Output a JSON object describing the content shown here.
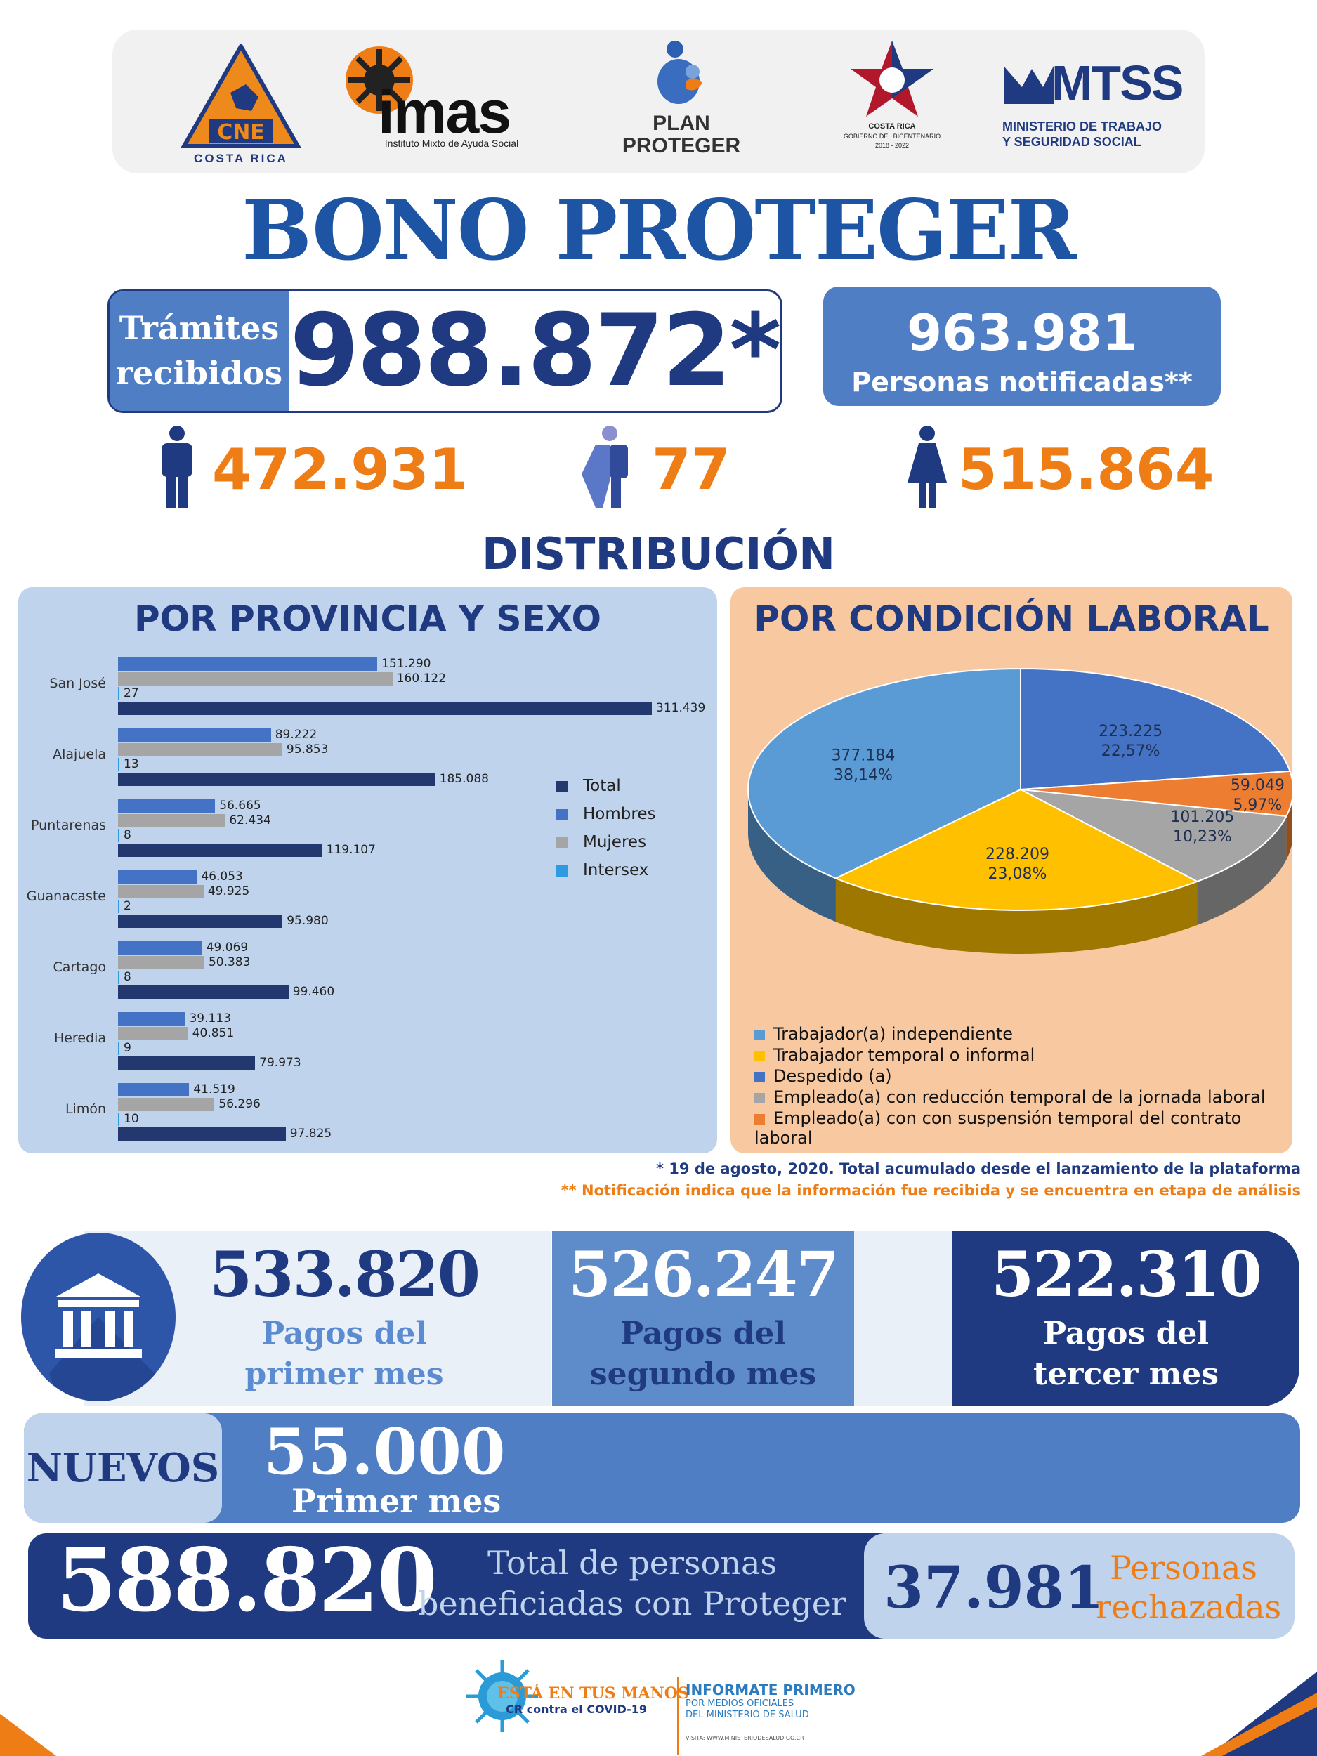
{
  "logos": {
    "cne": {
      "text": "CNE",
      "sub": "COSTA RICA"
    },
    "imas": {
      "text": "imas",
      "sub": "Instituto Mixto de Ayuda Social"
    },
    "plan": {
      "line1": "PLAN",
      "line2": "PROTEGER"
    },
    "gobierno": {
      "line1": "COSTA RICA",
      "line2": "GOBIERNO DEL BICENTENARIO",
      "line3": "2018 - 2022"
    },
    "mtss": {
      "text": "MTSS",
      "line1": "MINISTERIO DE TRABAJO",
      "line2": "Y SEGURIDAD SOCIAL"
    }
  },
  "title": "BONO PROTEGER",
  "tramites": {
    "label_line1": "Trámites",
    "label_line2": "recibidos",
    "value": "988.872*"
  },
  "notificadas": {
    "value": "963.981",
    "label": "Personas notificadas**"
  },
  "gender": {
    "men": "472.931",
    "intersex": "77",
    "women": "515.864"
  },
  "distribution_title": "DISTRIBUCIÓN",
  "colors": {
    "total": "#22386e",
    "hombres": "#4472c4",
    "mujeres": "#a5a5a5",
    "intersex": "#2e9be0",
    "navy": "#1f3a80",
    "orange": "#ee7d16"
  },
  "chart_data": [
    {
      "type": "bar",
      "title": "POR PROVINCIA Y SEXO",
      "orientation": "horizontal",
      "categories": [
        "San José",
        "Alajuela",
        "Puntarenas",
        "Guanacaste",
        "Cartago",
        "Heredia",
        "Limón"
      ],
      "series": [
        {
          "name": "Hombres",
          "values": [
            151290,
            89222,
            56665,
            46053,
            49069,
            39113,
            41519
          ],
          "labels": [
            "151.290",
            "89.222",
            "56.665",
            "46.053",
            "49.069",
            "39.113",
            "41.519"
          ]
        },
        {
          "name": "Mujeres",
          "values": [
            160122,
            95853,
            62434,
            49925,
            50383,
            40851,
            56296
          ],
          "labels": [
            "160.122",
            "95.853",
            "62.434",
            "49.925",
            "50.383",
            "40.851",
            "56.296"
          ]
        },
        {
          "name": "Intersex",
          "values": [
            27,
            13,
            8,
            2,
            8,
            9,
            10
          ],
          "labels": [
            "27",
            "13",
            "8",
            "2",
            "8",
            "9",
            "10"
          ]
        },
        {
          "name": "Total",
          "values": [
            311439,
            185088,
            119107,
            95980,
            99460,
            79973,
            97825
          ],
          "labels": [
            "311.439",
            "185.088",
            "119.107",
            "95.980",
            "99.460",
            "79.973",
            "97.825"
          ]
        }
      ],
      "legend": [
        "Total",
        "Hombres",
        "Mujeres",
        "Intersex"
      ],
      "xlim": [
        0,
        311439
      ]
    },
    {
      "type": "pie",
      "title": "POR CONDICIÓN LABORAL",
      "slices": [
        {
          "name": "Despedido (a)",
          "value": 223225,
          "label_value": "223.225",
          "label_pct": "22,57%",
          "color": "#4472c4"
        },
        {
          "name": "Empleado(a) con con suspensión temporal del contrato laboral",
          "value": 59049,
          "label_value": "59.049",
          "label_pct": "5,97%",
          "color": "#ed7d31"
        },
        {
          "name": "Empleado(a) con reducción temporal de la jornada laboral",
          "value": 101205,
          "label_value": "101.205",
          "label_pct": "10,23%",
          "color": "#a5a5a5"
        },
        {
          "name": "Trabajador temporal o informal",
          "value": 228209,
          "label_value": "228.209",
          "label_pct": "23,08%",
          "color": "#ffc000"
        },
        {
          "name": "Trabajador(a) independiente",
          "value": 377184,
          "label_value": "377.184",
          "label_pct": "38,14%",
          "color": "#5b9bd5"
        }
      ],
      "legend": [
        "Trabajador(a) independiente",
        "Trabajador temporal o informal",
        "Despedido (a)",
        "Empleado(a) con reducción temporal de la jornada laboral",
        "Empleado(a) con con suspensión temporal del contrato laboral"
      ]
    }
  ],
  "footnotes": {
    "one": "* 19 de agosto, 2020. Total acumulado desde el lanzamiento de la plataforma",
    "two": "** Notificación indica que la información fue recibida y se encuentra en etapa de análisis"
  },
  "payments": {
    "first": {
      "value": "533.820",
      "line1": "Pagos del",
      "line2": "primer mes"
    },
    "second": {
      "value": "526.247",
      "line1": "Pagos del",
      "line2": "segundo mes"
    },
    "third": {
      "value": "522.310",
      "line1": "Pagos del",
      "line2": "tercer mes"
    }
  },
  "nuevos": {
    "label": "NUEVOS",
    "value": "55.000",
    "sub": "Primer mes"
  },
  "totals": {
    "value": "588.820",
    "line1": "Total de personas",
    "line2": "beneficiadas con Proteger"
  },
  "rechazadas": {
    "value": "37.981",
    "line1": "Personas",
    "line2": "rechazadas"
  },
  "footer": {
    "campaign_line1": "ESTÁ EN TUS MANOS",
    "campaign_line2": "CR contra el COVID-19",
    "info_title": "INFORMATE PRIMERO",
    "info_line1": "POR MEDIOS OFICIALES",
    "info_line2": "DEL MINISTERIO DE SALUD",
    "info_url": "VISITA: WWW.MINISTERIODESALUD.GO.CR"
  }
}
